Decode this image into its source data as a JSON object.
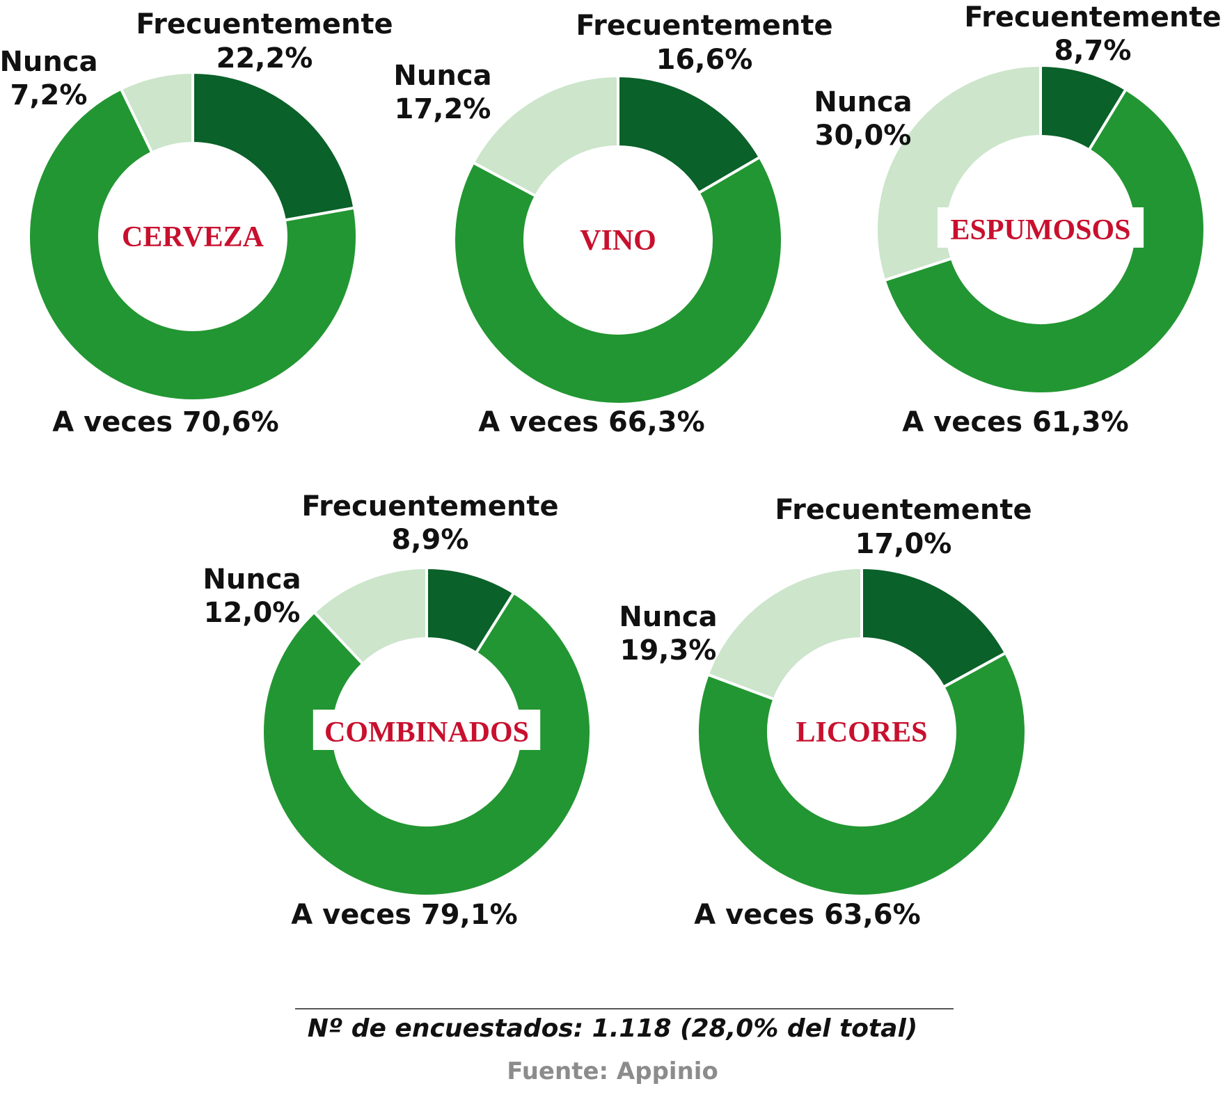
{
  "colors": {
    "frecuentemente": "#0a6129",
    "a_veces": "#229632",
    "nunca": "#cce5cb",
    "center_label": "#c8102e",
    "source": "#8c8c8c"
  },
  "chart_data": [
    {
      "type": "pie",
      "center_label": "CERVEZA",
      "slices": [
        {
          "label": "Frecuentemente",
          "value": 22.2,
          "text": "22,2%"
        },
        {
          "label": "A veces",
          "value": 70.6,
          "text": "70,6%"
        },
        {
          "label": "Nunca",
          "value": 7.2,
          "text": "7,2%"
        }
      ]
    },
    {
      "type": "pie",
      "center_label": "VINO",
      "slices": [
        {
          "label": "Frecuentemente",
          "value": 16.6,
          "text": "16,6%"
        },
        {
          "label": "A veces",
          "value": 66.3,
          "text": "66,3%"
        },
        {
          "label": "Nunca",
          "value": 17.2,
          "text": "17,2%"
        }
      ]
    },
    {
      "type": "pie",
      "center_label": "ESPUMOSOS",
      "slices": [
        {
          "label": "Frecuentemente",
          "value": 8.7,
          "text": "8,7%"
        },
        {
          "label": "A veces",
          "value": 61.3,
          "text": "61,3%"
        },
        {
          "label": "Nunca",
          "value": 30.0,
          "text": "30,0%"
        }
      ]
    },
    {
      "type": "pie",
      "center_label": "COMBINADOS",
      "slices": [
        {
          "label": "Frecuentemente",
          "value": 8.9,
          "text": "8,9%"
        },
        {
          "label": "A veces",
          "value": 79.1,
          "text": "79,1%"
        },
        {
          "label": "Nunca",
          "value": 12.0,
          "text": "12,0%"
        }
      ]
    },
    {
      "type": "pie",
      "center_label": "LICORES",
      "slices": [
        {
          "label": "Frecuentemente",
          "value": 17.0,
          "text": "17,0%"
        },
        {
          "label": "A veces",
          "value": 63.6,
          "text": "63,6%"
        },
        {
          "label": "Nunca",
          "value": 19.3,
          "text": "19,3%"
        }
      ]
    }
  ],
  "footer": {
    "note": "Nº de encuestados: 1.118 (28,0% del total)",
    "source": "Fuente: Appinio"
  }
}
